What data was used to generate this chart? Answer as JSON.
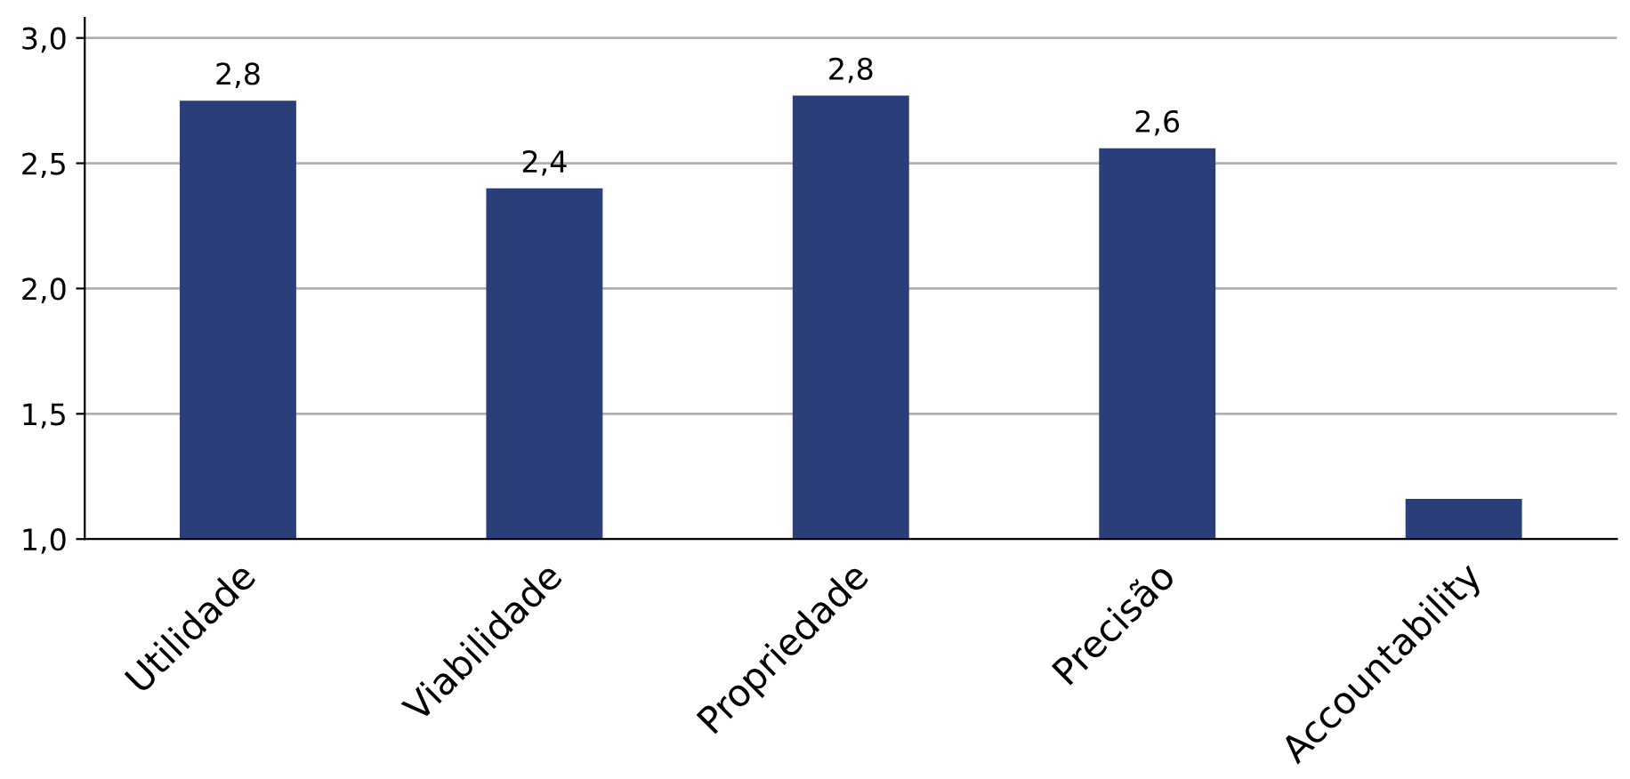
{
  "chart_data": {
    "type": "bar",
    "categories": [
      "Utilidade",
      "Viabilidade",
      "Propriedade",
      "Precisão",
      "Accountability"
    ],
    "values": [
      2.75,
      2.4,
      2.77,
      2.56,
      1.16
    ],
    "value_labels": [
      "2,8",
      "2,4",
      "2,8",
      "2,6",
      null
    ],
    "color": "#2a3f7a",
    "ylim": [
      1.0,
      3.08
    ],
    "yticks": [
      {
        "value": 1.0,
        "label": "1,0"
      },
      {
        "value": 1.5,
        "label": "1,5"
      },
      {
        "value": 2.0,
        "label": "2,0"
      },
      {
        "value": 2.5,
        "label": "2,5"
      },
      {
        "value": 3.0,
        "label": "3,0"
      }
    ],
    "grid": "y"
  }
}
